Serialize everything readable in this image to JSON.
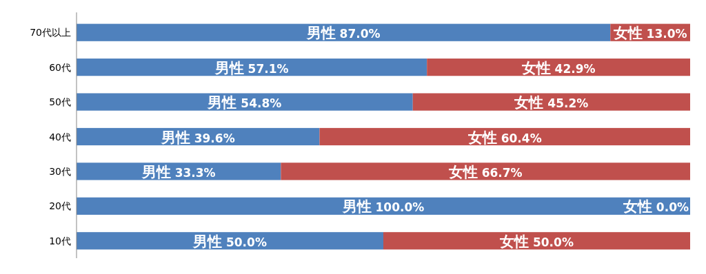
{
  "chart_data": {
    "type": "bar",
    "orientation": "horizontal",
    "stacked": true,
    "categories": [
      "70代以上",
      "60代",
      "50代",
      "40代",
      "30代",
      "20代",
      "10代"
    ],
    "xlim": [
      0,
      100
    ],
    "tick_labels": "y",
    "series": [
      {
        "name": "男性",
        "color": "#4f81bd",
        "values": [
          87.0,
          57.1,
          54.8,
          39.6,
          33.3,
          100.0,
          50.0
        ],
        "value_labels": [
          "87.0%",
          "57.1%",
          "54.8%",
          "39.6%",
          "33.3%",
          "100.0%",
          "50.0%"
        ]
      },
      {
        "name": "女性",
        "color": "#c0504d",
        "values": [
          13.0,
          42.9,
          45.2,
          60.4,
          66.7,
          0.0,
          50.0
        ],
        "value_labels": [
          "13.0%",
          "42.9%",
          "45.2%",
          "60.4%",
          "66.7%",
          "0.0%",
          "50.0%"
        ]
      }
    ]
  }
}
